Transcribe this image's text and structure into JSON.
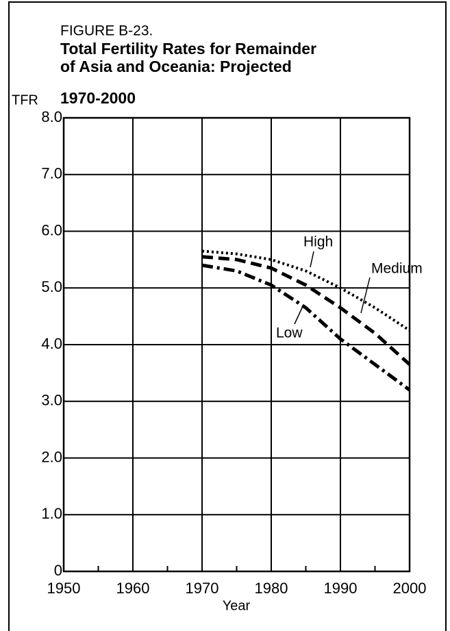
{
  "chart_data": {
    "type": "line",
    "figure_label": "FIGURE B-23.",
    "title": [
      "Total Fertility Rates for Remainder",
      "of Asia and Oceania: Projected",
      "1970-2000"
    ],
    "y_label": "TFR",
    "x_label": "Year",
    "x": [
      1970,
      1975,
      1980,
      1985,
      1990,
      1995,
      2000
    ],
    "series": [
      {
        "name": "High",
        "color": "#000000",
        "style": "dotted",
        "values": [
          5.65,
          5.6,
          5.5,
          5.3,
          5.0,
          4.65,
          4.25
        ]
      },
      {
        "name": "Medium",
        "color": "#000000",
        "style": "dashed",
        "values": [
          5.55,
          5.5,
          5.35,
          5.05,
          4.65,
          4.2,
          3.65
        ]
      },
      {
        "name": "Low",
        "color": "#000000",
        "style": "dashdot",
        "values": [
          5.4,
          5.3,
          5.05,
          4.65,
          4.1,
          3.65,
          3.2
        ]
      }
    ],
    "xlim": [
      1950,
      2000
    ],
    "xticks": [
      1950,
      1960,
      1970,
      1980,
      1990,
      2000
    ],
    "ylim": [
      0,
      8
    ],
    "yticks": [
      0,
      {
        "value": 1,
        "label": "1.0"
      },
      {
        "value": 2,
        "label": "2.0"
      },
      {
        "value": 3,
        "label": "3.0"
      },
      {
        "value": 4,
        "label": "4.0"
      },
      {
        "value": 5,
        "label": "5.0"
      },
      {
        "value": 6,
        "label": "6.0"
      },
      {
        "value": 7,
        "label": "7.0"
      },
      {
        "value": 8,
        "label": "8.0"
      }
    ],
    "grid": true
  }
}
